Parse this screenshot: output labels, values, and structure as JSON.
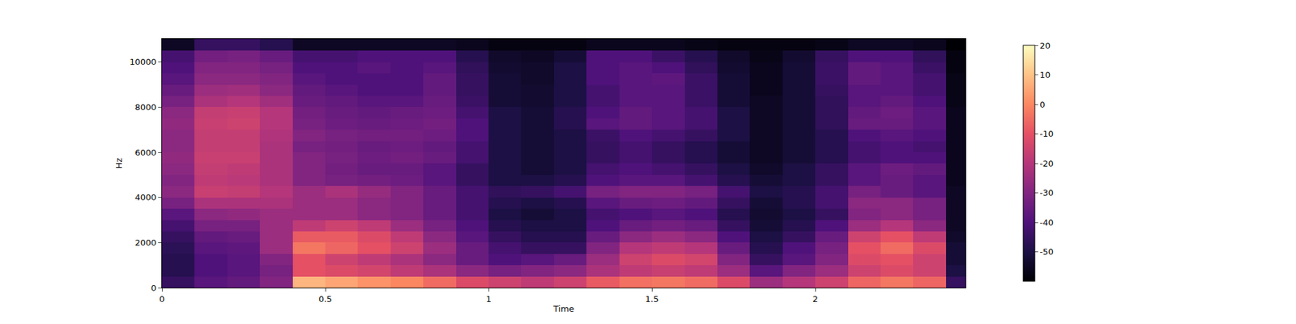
{
  "chart_data": {
    "type": "heatmap",
    "x_label": "Time",
    "y_label": "Hz",
    "xlim": [
      0,
      2.46
    ],
    "xticks": [
      0,
      0.5,
      1,
      1.5,
      2
    ],
    "ylim": [
      0,
      11025
    ],
    "yticks": [
      0,
      2000,
      4000,
      6000,
      8000,
      10000
    ],
    "zlim": [
      -60,
      20
    ],
    "zticks": [
      -50,
      -40,
      -30,
      -20,
      -10,
      0,
      10,
      20
    ],
    "x": [
      0,
      0.1,
      0.2,
      0.3,
      0.4,
      0.5,
      0.6,
      0.7,
      0.8,
      0.9,
      1.0,
      1.1,
      1.2,
      1.3,
      1.4,
      1.5,
      1.6,
      1.7,
      1.8,
      1.9,
      2.0,
      2.1,
      2.2,
      2.3,
      2.4,
      2.46
    ],
    "y": [
      0,
      500,
      1000,
      1500,
      2000,
      2500,
      3000,
      3500,
      4000,
      4500,
      5000,
      5500,
      6000,
      6500,
      7000,
      7500,
      8000,
      8500,
      9000,
      9500,
      10000,
      10500,
      11025
    ],
    "z": [
      [
        -45,
        -38,
        -36,
        -30,
        8,
        5,
        2,
        0,
        -5,
        -12,
        -15,
        -18,
        -15,
        -8,
        -4,
        -3,
        -5,
        -12,
        -25,
        -20,
        -15,
        -6,
        -3,
        -6,
        -45
      ],
      [
        -48,
        -40,
        -38,
        -32,
        -10,
        -12,
        -14,
        -18,
        -22,
        -28,
        -32,
        -30,
        -28,
        -22,
        -18,
        -16,
        -18,
        -25,
        -38,
        -30,
        -25,
        -15,
        -12,
        -15,
        -50
      ],
      [
        -48,
        -40,
        -38,
        -30,
        -10,
        -15,
        -18,
        -22,
        -28,
        -35,
        -40,
        -38,
        -35,
        -25,
        -15,
        -12,
        -14,
        -30,
        -45,
        -38,
        -30,
        -12,
        -10,
        -15,
        -52
      ],
      [
        -47,
        -38,
        -37,
        -25,
        -3,
        -6,
        -10,
        -15,
        -25,
        -35,
        -42,
        -45,
        -45,
        -30,
        -20,
        -18,
        -20,
        -35,
        -48,
        -40,
        -32,
        -10,
        -5,
        -12,
        -52
      ],
      [
        -45,
        -36,
        -35,
        -25,
        -8,
        -8,
        -12,
        -18,
        -28,
        -38,
        -45,
        -48,
        -48,
        -35,
        -28,
        -25,
        -28,
        -40,
        -50,
        -45,
        -35,
        -15,
        -10,
        -18,
        -54
      ],
      [
        -42,
        -32,
        -32,
        -25,
        -18,
        -15,
        -18,
        -25,
        -32,
        -40,
        -48,
        -50,
        -50,
        -40,
        -35,
        -33,
        -35,
        -45,
        -52,
        -48,
        -40,
        -25,
        -20,
        -28,
        -55
      ],
      [
        -38,
        -28,
        -27,
        -25,
        -25,
        -25,
        -28,
        -30,
        -35,
        -42,
        -50,
        -52,
        -50,
        -42,
        -40,
        -38,
        -40,
        -48,
        -53,
        -50,
        -45,
        -30,
        -28,
        -32,
        -55
      ],
      [
        -32,
        -22,
        -22,
        -22,
        -25,
        -25,
        -28,
        -30,
        -35,
        -42,
        -48,
        -50,
        -48,
        -38,
        -35,
        -34,
        -36,
        -45,
        -52,
        -48,
        -42,
        -28,
        -28,
        -32,
        -55
      ],
      [
        -28,
        -16,
        -17,
        -20,
        -25,
        -22,
        -26,
        -30,
        -35,
        -42,
        -46,
        -45,
        -42,
        -32,
        -30,
        -30,
        -32,
        -42,
        -50,
        -48,
        -42,
        -32,
        -35,
        -38,
        -55
      ],
      [
        -30,
        -18,
        -19,
        -22,
        -30,
        -32,
        -33,
        -34,
        -38,
        -45,
        -50,
        -50,
        -48,
        -40,
        -38,
        -38,
        -42,
        -48,
        -52,
        -50,
        -45,
        -38,
        -35,
        -38,
        -56
      ],
      [
        -28,
        -17,
        -18,
        -22,
        -30,
        -33,
        -35,
        -35,
        -38,
        -45,
        -50,
        -52,
        -50,
        -42,
        -40,
        -42,
        -45,
        -50,
        -54,
        -50,
        -45,
        -38,
        -34,
        -36,
        -56
      ],
      [
        -27,
        -16,
        -16,
        -22,
        -30,
        -32,
        -34,
        -33,
        -35,
        -42,
        -50,
        -52,
        -50,
        -45,
        -42,
        -45,
        -48,
        -52,
        -55,
        -52,
        -48,
        -42,
        -40,
        -40,
        -56
      ],
      [
        -28,
        -17,
        -17,
        -22,
        -32,
        -33,
        -35,
        -34,
        -36,
        -42,
        -50,
        -52,
        -50,
        -45,
        -42,
        -45,
        -48,
        -52,
        -55,
        -52,
        -48,
        -42,
        -40,
        -42,
        -56
      ],
      [
        -28,
        -17,
        -17,
        -21,
        -30,
        -32,
        -33,
        -33,
        -34,
        -40,
        -50,
        -52,
        -50,
        -44,
        -40,
        -42,
        -45,
        -50,
        -55,
        -52,
        -48,
        -40,
        -38,
        -40,
        -56
      ],
      [
        -27,
        -16,
        -15,
        -20,
        -32,
        -34,
        -35,
        -34,
        -33,
        -40,
        -50,
        -52,
        -48,
        -38,
        -36,
        -38,
        -42,
        -50,
        -55,
        -52,
        -46,
        -35,
        -35,
        -38,
        -56
      ],
      [
        -28,
        -17,
        -16,
        -20,
        -33,
        -35,
        -36,
        -35,
        -34,
        -42,
        -50,
        -52,
        -48,
        -40,
        -36,
        -38,
        -42,
        -50,
        -55,
        -52,
        -46,
        -36,
        -34,
        -38,
        -56
      ],
      [
        -32,
        -22,
        -20,
        -24,
        -35,
        -36,
        -38,
        -38,
        -35,
        -44,
        -52,
        -53,
        -50,
        -42,
        -38,
        -38,
        -44,
        -52,
        -55,
        -52,
        -46,
        -38,
        -36,
        -40,
        -57
      ],
      [
        -35,
        -25,
        -24,
        -28,
        -36,
        -38,
        -40,
        -40,
        -36,
        -45,
        -52,
        -53,
        -50,
        -42,
        -38,
        -38,
        -44,
        -52,
        -56,
        -52,
        -45,
        -38,
        -38,
        -42,
        -57
      ],
      [
        -38,
        -28,
        -28,
        -30,
        -38,
        -40,
        -40,
        -40,
        -36,
        -45,
        -52,
        -54,
        -50,
        -40,
        -38,
        -37,
        -44,
        -52,
        -56,
        -52,
        -44,
        -36,
        -38,
        -42,
        -57
      ],
      [
        -40,
        -30,
        -30,
        -32,
        -40,
        -40,
        -38,
        -40,
        -38,
        -46,
        -53,
        -54,
        -50,
        -40,
        -38,
        -40,
        -46,
        -53,
        -56,
        -52,
        -44,
        -36,
        -38,
        -44,
        -58
      ],
      [
        -42,
        -33,
        -32,
        -35,
        -42,
        -42,
        -40,
        -40,
        -40,
        -48,
        -54,
        -55,
        -52,
        -40,
        -40,
        -44,
        -48,
        -54,
        -57,
        -53,
        -45,
        -40,
        -40,
        -46,
        -58
      ],
      [
        -55,
        -45,
        -45,
        -48,
        -55,
        -55,
        -55,
        -55,
        -55,
        -56,
        -58,
        -58,
        -58,
        -56,
        -56,
        -56,
        -57,
        -58,
        -58,
        -58,
        -57,
        -55,
        -55,
        -56,
        -60
      ]
    ]
  }
}
